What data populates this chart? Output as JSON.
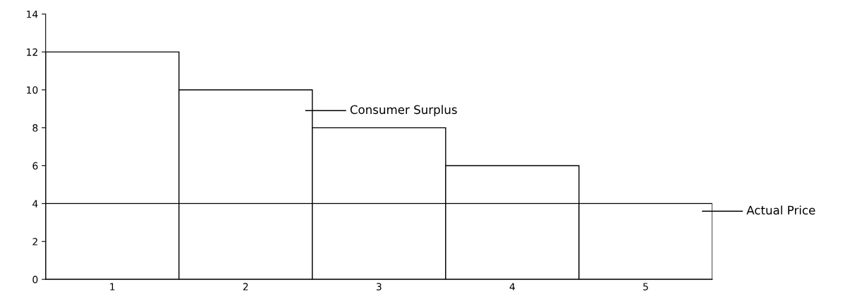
{
  "chart_data": {
    "type": "bar",
    "stacked": true,
    "categories": [
      "1",
      "2",
      "3",
      "4",
      "5"
    ],
    "series": [
      {
        "color": "#ffffff",
        "values": [
          4,
          4,
          4,
          4,
          4
        ]
      },
      {
        "color": "#ffffff",
        "values": [
          8,
          6,
          4,
          2,
          0
        ]
      }
    ],
    "ylim": [
      0,
      14
    ],
    "yticks": [
      0,
      2,
      4,
      6,
      8,
      10,
      12,
      14
    ],
    "grid": false,
    "legend": false,
    "annotations": [
      "Consumer Surplus",
      "Actual Price"
    ]
  }
}
